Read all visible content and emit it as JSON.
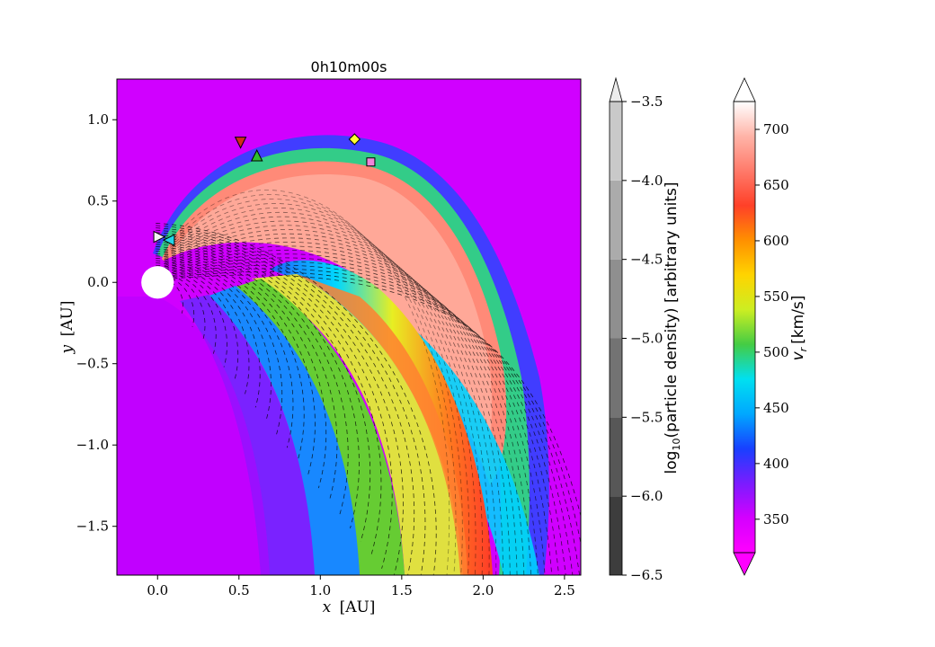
{
  "chart_data": {
    "type": "heatmap",
    "title": "0h10m00s",
    "xlabel": {
      "var": "x",
      "unit": "[AU]"
    },
    "ylabel": {
      "var": "y",
      "unit": "[AU]"
    },
    "xlim": [
      -0.25,
      2.6
    ],
    "ylim": [
      -1.8,
      1.25
    ],
    "xticks": [
      {
        "value": 0.0,
        "label": "0.0"
      },
      {
        "value": 0.5,
        "label": "0.5"
      },
      {
        "value": 1.0,
        "label": "1.0"
      },
      {
        "value": 1.5,
        "label": "1.5"
      },
      {
        "value": 2.0,
        "label": "2.0"
      },
      {
        "value": 2.5,
        "label": "2.5"
      }
    ],
    "yticks": [
      {
        "value": 1.0,
        "label": "1.0"
      },
      {
        "value": 0.5,
        "label": "0.5"
      },
      {
        "value": 0.0,
        "label": "0.0"
      },
      {
        "value": -0.5,
        "label": "−0.5"
      },
      {
        "value": -1.0,
        "label": "−1.0"
      },
      {
        "value": -1.5,
        "label": "−1.5"
      }
    ],
    "sun": {
      "x": 0.0,
      "y": 0.0,
      "r": 0.1
    },
    "observers": [
      {
        "name": "obs-red",
        "shape": "triangle-down",
        "x": 0.51,
        "y": 0.86,
        "color": "#d42a1a"
      },
      {
        "name": "obs-green",
        "shape": "triangle-up",
        "x": 0.61,
        "y": 0.78,
        "color": "#2ec02e"
      },
      {
        "name": "obs-yellow",
        "shape": "diamond",
        "x": 1.21,
        "y": 0.88,
        "color": "#ffff2e"
      },
      {
        "name": "obs-pink",
        "shape": "square",
        "x": 1.31,
        "y": 0.74,
        "color": "#f085d8"
      },
      {
        "name": "obs-white",
        "shape": "triangle-right",
        "x": 0.01,
        "y": 0.28,
        "color": "#f2f2f2"
      },
      {
        "name": "obs-cyan",
        "shape": "triangle-left",
        "x": 0.07,
        "y": 0.26,
        "color": "#22d6e8"
      }
    ],
    "density_colorbar": {
      "label": "log10(particle density) [arbitrary units]",
      "label_base": "log",
      "label_sub": "10",
      "label_rest": "(particle density) [arbitrary units]",
      "min": -6.5,
      "max": -3.5,
      "levels": [
        -6.5,
        -6.0,
        -5.5,
        -5.0,
        -4.5,
        -4.0,
        -3.5
      ],
      "ticks": [
        {
          "value": -3.5,
          "label": "−3.5"
        },
        {
          "value": -4.0,
          "label": "−4.0"
        },
        {
          "value": -4.5,
          "label": "−4.5"
        },
        {
          "value": -5.0,
          "label": "−5.0"
        },
        {
          "value": -5.5,
          "label": "−5.5"
        },
        {
          "value": -6.0,
          "label": "−6.0"
        },
        {
          "value": -6.5,
          "label": "−6.5"
        }
      ],
      "colors": [
        "#3d3d3d",
        "#575757",
        "#737373",
        "#8f8f8f",
        "#ababab",
        "#c9c9c9",
        "#ececec"
      ]
    },
    "velocity_colorbar": {
      "label": "v_r [km/s]",
      "label_var": "v",
      "label_sub": "r",
      "label_unit": "[km/s]",
      "min": 320,
      "max": 725,
      "ticks": [
        {
          "value": 350,
          "label": "350"
        },
        {
          "value": 400,
          "label": "400"
        },
        {
          "value": 450,
          "label": "450"
        },
        {
          "value": 500,
          "label": "500"
        },
        {
          "value": 550,
          "label": "550"
        },
        {
          "value": 600,
          "label": "600"
        },
        {
          "value": 650,
          "label": "650"
        },
        {
          "value": 700,
          "label": "700"
        }
      ],
      "colors": [
        "#ff00ff",
        "#d400ff",
        "#7a1cff",
        "#1840ff",
        "#00a8ff",
        "#00e0f0",
        "#44cc44",
        "#ccee22",
        "#ffd400",
        "#ff9000",
        "#ff4028",
        "#ff7a6a",
        "#ffb4a8",
        "#ffffff"
      ]
    },
    "background_color": "#d000ff"
  }
}
